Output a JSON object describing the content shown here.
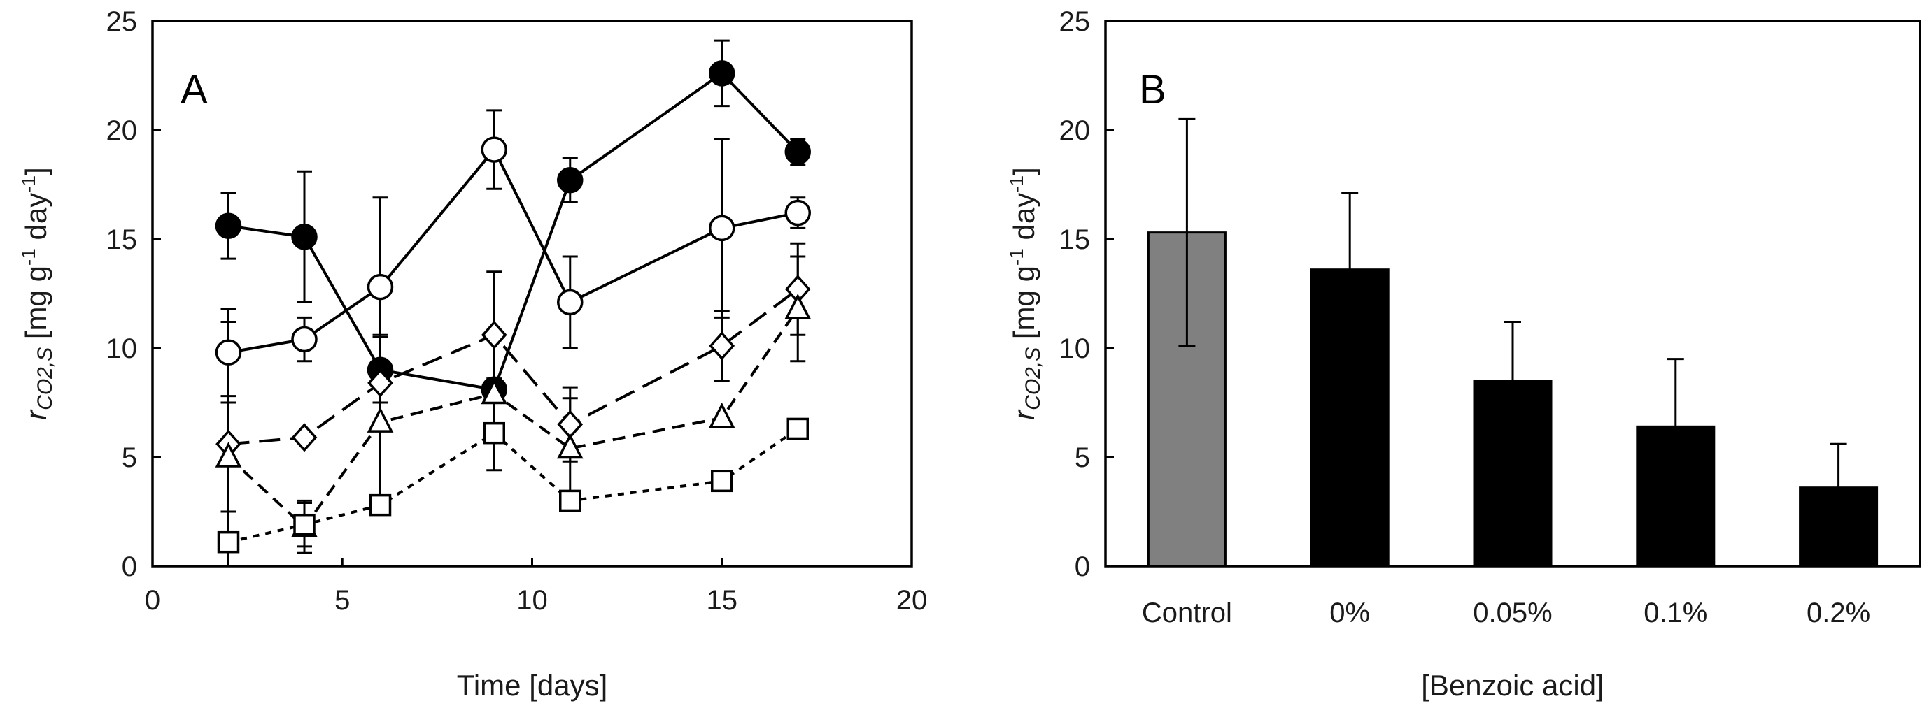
{
  "chart_data": [
    {
      "panel": "A",
      "type": "line",
      "panel_label": "A",
      "xlabel": "Time [days]",
      "ylabel": {
        "symbol": "r",
        "subscript": "CO2,S",
        "units_prefix": " [mg g",
        "units_exp1": "-1",
        "units_mid": " day",
        "units_exp2": "-1",
        "units_suffix": "]"
      },
      "xlim": [
        0,
        20
      ],
      "ylim": [
        0,
        25
      ],
      "xticks": [
        "0",
        "5",
        "10",
        "15",
        "20"
      ],
      "yticks": [
        "0",
        "5",
        "10",
        "15",
        "20",
        "25"
      ],
      "x": [
        2,
        4,
        6,
        9,
        11,
        15,
        17
      ],
      "series": [
        {
          "name": "filled-circle",
          "marker": "circle",
          "filled": true,
          "line": "solid",
          "values": [
            15.6,
            15.1,
            9.0,
            8.1,
            17.7,
            22.6,
            19.0
          ],
          "errors": [
            1.5,
            3.0,
            1.5,
            0.5,
            1.0,
            1.5,
            0.6
          ]
        },
        {
          "name": "open-circle",
          "marker": "circle",
          "filled": false,
          "line": "solid",
          "values": [
            9.8,
            10.4,
            12.8,
            19.1,
            12.1,
            15.5,
            16.2
          ],
          "errors": [
            2.0,
            1.0,
            4.1,
            1.8,
            2.1,
            4.1,
            0.7
          ]
        },
        {
          "name": "open-diamond",
          "marker": "diamond",
          "filled": false,
          "line": "longdash",
          "values": [
            5.6,
            5.9,
            8.4,
            10.6,
            6.5,
            10.1,
            12.7
          ],
          "errors": [
            5.6,
            0.0,
            0.0,
            2.9,
            1.7,
            1.6,
            2.1
          ]
        },
        {
          "name": "open-triangle",
          "marker": "triangle",
          "filled": false,
          "line": "dash",
          "values": [
            5.0,
            1.8,
            6.6,
            7.9,
            5.4,
            6.8,
            11.8
          ],
          "errors": [
            2.5,
            1.2,
            4.0,
            0.0,
            2.3,
            0.0,
            2.4
          ]
        },
        {
          "name": "open-square",
          "marker": "square",
          "filled": false,
          "line": "dot",
          "values": [
            1.1,
            1.9,
            2.8,
            6.1,
            3.0,
            3.9,
            6.3
          ],
          "errors": [
            0.0,
            1.0,
            0.0,
            1.7,
            0.0,
            0.4,
            0.0
          ]
        }
      ]
    },
    {
      "panel": "B",
      "type": "bar",
      "panel_label": "B",
      "xlabel": "[Benzoic acid]",
      "ylabel": {
        "symbol": "r",
        "subscript": "CO2,S",
        "units_prefix": " [mg g",
        "units_exp1": "-1",
        "units_mid": " day",
        "units_exp2": "-1",
        "units_suffix": "]"
      },
      "ylim": [
        0,
        25
      ],
      "yticks": [
        "0",
        "5",
        "10",
        "15",
        "20",
        "25"
      ],
      "categories": [
        "Control",
        "0%",
        "0.05%",
        "0.1%",
        "0.2%"
      ],
      "values": [
        15.3,
        13.6,
        8.5,
        6.4,
        3.6
      ],
      "errors": [
        5.2,
        3.5,
        2.7,
        3.1,
        2.0
      ],
      "colors": [
        "#808080",
        "#000000",
        "#000000",
        "#000000",
        "#000000"
      ]
    }
  ]
}
